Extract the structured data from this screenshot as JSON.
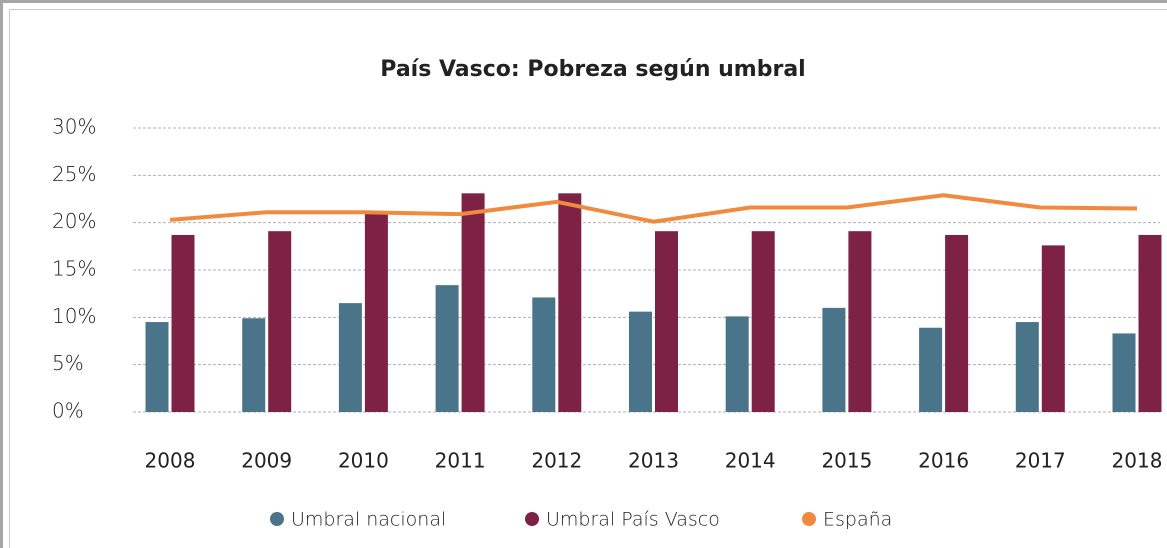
{
  "chart_data": {
    "type": "bar-line",
    "title": "País Vasco: Pobreza según umbral",
    "categories": [
      "2008",
      "2009",
      "2010",
      "2011",
      "2012",
      "2013",
      "2014",
      "2015",
      "2016",
      "2017",
      "2018"
    ],
    "series": [
      {
        "name": "Umbral nacional",
        "color": "#4a7489",
        "type": "bar",
        "values": [
          9.5,
          9.9,
          11.5,
          13.4,
          12.1,
          10.6,
          10.1,
          11.0,
          8.9,
          9.5,
          8.3
        ]
      },
      {
        "name": "Umbral País Vasco",
        "color": "#7d2244",
        "type": "bar",
        "values": [
          18.7,
          19.1,
          21.2,
          23.1,
          23.1,
          19.1,
          19.1,
          19.1,
          18.7,
          17.6,
          18.7
        ]
      },
      {
        "name": "España",
        "color": "#f08a3e",
        "type": "line",
        "values": [
          20.3,
          21.1,
          21.1,
          20.9,
          22.2,
          20.1,
          21.6,
          21.6,
          22.9,
          21.6,
          21.5
        ]
      }
    ],
    "ylim": [
      0,
      30
    ],
    "yticks": [
      {
        "value": 0,
        "label": "0%"
      },
      {
        "value": 5,
        "label": "5%"
      },
      {
        "value": 10,
        "label": "10%"
      },
      {
        "value": 15,
        "label": "15%"
      },
      {
        "value": 20,
        "label": "20%"
      },
      {
        "value": 25,
        "label": "25%"
      },
      {
        "value": 30,
        "label": "30%"
      }
    ],
    "grid": true,
    "legend": "bottom"
  }
}
